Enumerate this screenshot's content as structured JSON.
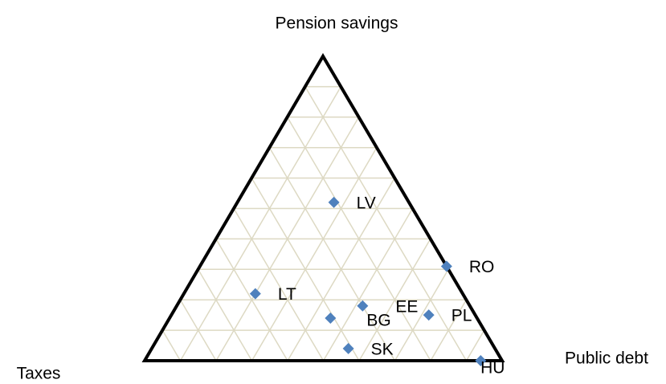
{
  "chart_data": {
    "type": "ternary",
    "axis_labels": {
      "top": "Pension savings",
      "left": "Taxes",
      "right": "Public debt"
    },
    "categories": [
      "LV",
      "RO",
      "LT",
      "EE",
      "BG",
      "PL",
      "SK",
      "HU"
    ],
    "top_values": [
      52,
      31,
      22,
      18,
      14,
      15,
      4,
      0
    ],
    "right_values": [
      27,
      69,
      20,
      52,
      45,
      72,
      55,
      94
    ],
    "left_values": [
      21,
      0,
      58,
      30,
      41,
      13,
      41,
      6
    ],
    "color": "#4f81bd",
    "grid": true,
    "gridlines": [
      10,
      20,
      30,
      40,
      50,
      60,
      70,
      80,
      90
    ]
  }
}
